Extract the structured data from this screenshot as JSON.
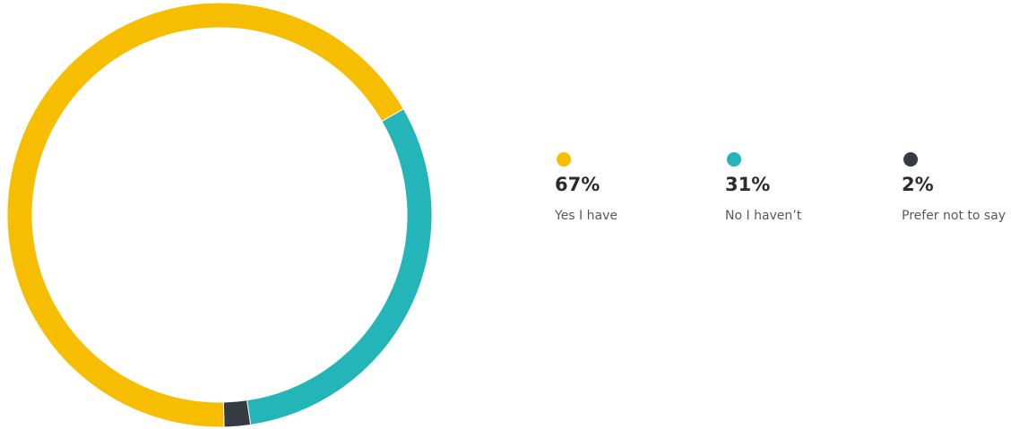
{
  "chart_data": {
    "type": "pie",
    "categories": [
      "Yes I have",
      "No I haven’t",
      "Prefer not to say"
    ],
    "values": [
      67,
      31,
      2
    ],
    "value_labels": [
      "67%",
      "31%",
      "2%"
    ],
    "colors": [
      "#f7bd00",
      "#23b5b7",
      "#363b41"
    ],
    "legend_position": "right"
  }
}
